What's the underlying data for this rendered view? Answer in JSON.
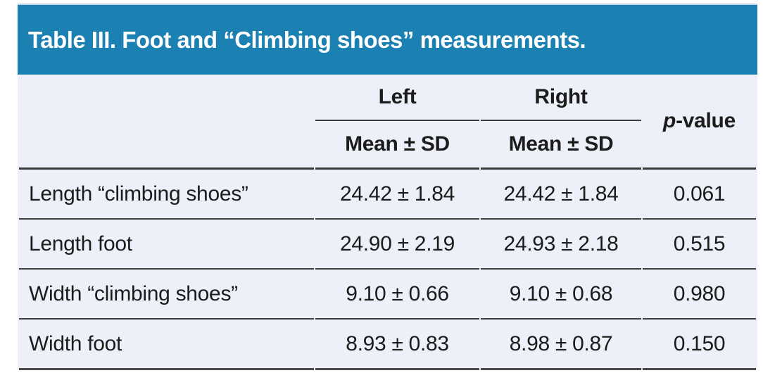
{
  "title": "Table III. Foot and “Climbing shoes” measurements.",
  "header": {
    "group_left": "Left",
    "group_right": "Right",
    "sub_left": "Mean ± SD",
    "sub_right": "Mean ± SD",
    "pvalue_prefix": "p",
    "pvalue_suffix": "-value"
  },
  "rows": [
    {
      "label": "Length “climbing shoes”",
      "left": "24.42 ± 1.84",
      "right": "24.42 ± 1.84",
      "p": "0.061"
    },
    {
      "label": "Length foot",
      "left": "24.90 ± 2.19",
      "right": "24.93 ± 2.18",
      "p": "0.515"
    },
    {
      "label": "Width “climbing shoes”",
      "left": "9.10 ± 0.66",
      "right": "9.10 ± 0.68",
      "p": "0.980"
    },
    {
      "label": "Width foot",
      "left": "8.93 ± 0.83",
      "right": "8.98 ± 0.87",
      "p": "0.150"
    }
  ],
  "colors": {
    "banner_bg": "#1b80b2",
    "banner_text": "#ffffff",
    "body_bg": "#edf0f8",
    "rule": "#3d3d3d",
    "text": "#1c1c1c",
    "page_bg": "#ffffff"
  },
  "chart_data": {
    "type": "table",
    "title": "Table III. Foot and “Climbing shoes” measurements.",
    "columns": [
      "",
      "Left Mean ± SD",
      "Right Mean ± SD",
      "p-value"
    ],
    "rows": [
      [
        "Length “climbing shoes”",
        "24.42 ± 1.84",
        "24.42 ± 1.84",
        "0.061"
      ],
      [
        "Length foot",
        "24.90 ± 2.19",
        "24.93 ± 2.18",
        "0.515"
      ],
      [
        "Width “climbing shoes”",
        "9.10 ± 0.66",
        "9.10 ± 0.68",
        "0.980"
      ],
      [
        "Width foot",
        "8.93 ± 0.83",
        "8.98 ± 0.87",
        "0.150"
      ]
    ]
  }
}
